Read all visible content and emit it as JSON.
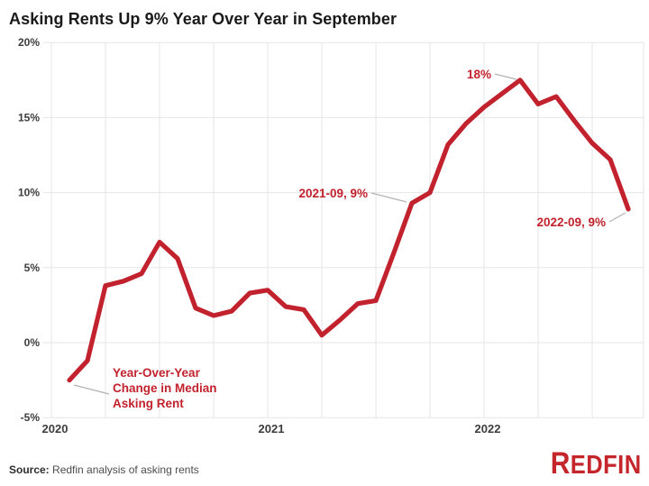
{
  "page": {
    "title": "Asking Rents Up 9% Year Over Year in September"
  },
  "source": {
    "prefix": "Source:",
    "text": " Redfin analysis of asking rents"
  },
  "logo": {
    "text": "REDFIN"
  },
  "colors": {
    "line": "#c2222d",
    "annotation": "#c2222d",
    "logo_red": "#c5262c",
    "grid": "#e5e5e5",
    "leader": "#b3b3b3",
    "axis_label": "#3d3d3d",
    "title": "#1a1a1a",
    "source": "#4d4d4d",
    "background": "#ffffff"
  },
  "chart_data": {
    "type": "line",
    "title": "Asking Rents Up 9% Year Over Year in September",
    "series_label": "Year-Over-Year Change in Median Asking Rent",
    "x": [
      "2020-02",
      "2020-03",
      "2020-04",
      "2020-05",
      "2020-06",
      "2020-07",
      "2020-08",
      "2020-09",
      "2020-10",
      "2020-11",
      "2020-12",
      "2021-01",
      "2021-02",
      "2021-03",
      "2021-04",
      "2021-05",
      "2021-06",
      "2021-07",
      "2021-08",
      "2021-09",
      "2021-10",
      "2021-11",
      "2021-12",
      "2022-01",
      "2022-02",
      "2022-03",
      "2022-04",
      "2022-05",
      "2022-06",
      "2022-07",
      "2022-08",
      "2022-09"
    ],
    "values": [
      -2.5,
      -1.2,
      3.8,
      4.1,
      4.6,
      6.7,
      5.6,
      2.3,
      1.8,
      2.1,
      3.3,
      3.5,
      2.4,
      2.2,
      0.5,
      1.5,
      2.6,
      2.8,
      6.0,
      9.3,
      10.0,
      13.2,
      14.6,
      15.7,
      16.6,
      17.5,
      15.9,
      16.4,
      14.8,
      13.3,
      12.2,
      8.9
    ],
    "ylim": [
      -5,
      20
    ],
    "yticks": [
      {
        "label": "20%",
        "value": 20
      },
      {
        "label": "15%",
        "value": 15
      },
      {
        "label": "10%",
        "value": 10
      },
      {
        "label": "5%",
        "value": 5
      },
      {
        "label": "0%",
        "value": 0
      },
      {
        "label": "-5%",
        "value": -5
      }
    ],
    "xticks": [
      {
        "label": "2020",
        "month": "2020-01"
      },
      {
        "label": "2021",
        "month": "2021-01"
      },
      {
        "label": "2022",
        "month": "2022-01"
      }
    ],
    "grid": "on",
    "grid_interval_months": 3,
    "legend_position": "none",
    "annotations": [
      {
        "id": "peak",
        "text": "18%",
        "month": "2022-03",
        "value": 17.5,
        "text_x": 545,
        "text_y": 87,
        "anchor": "end",
        "leader": [
          [
            549,
            82
          ],
          [
            573,
            88
          ]
        ]
      },
      {
        "id": "sep2021",
        "text": "2021-09, 9%",
        "month": "2021-09",
        "value": 9.3,
        "text_x": 408,
        "text_y": 219,
        "anchor": "end",
        "leader": [
          [
            412,
            214
          ],
          [
            451,
            224
          ]
        ]
      },
      {
        "id": "sep2022",
        "text": "2022-09, 9%",
        "month": "2022-09",
        "value": 8.9,
        "text_x": 672,
        "text_y": 251,
        "anchor": "end",
        "leader": [
          [
            676,
            246
          ],
          [
            694,
            236
          ]
        ]
      }
    ],
    "callout": {
      "lines": [
        "Year-Over-Year",
        "Change in Median",
        "Asking Rent"
      ],
      "x": 125,
      "y": 418,
      "line_height": 17,
      "leader": [
        [
          82,
          427
        ],
        [
          121,
          437
        ]
      ]
    }
  }
}
